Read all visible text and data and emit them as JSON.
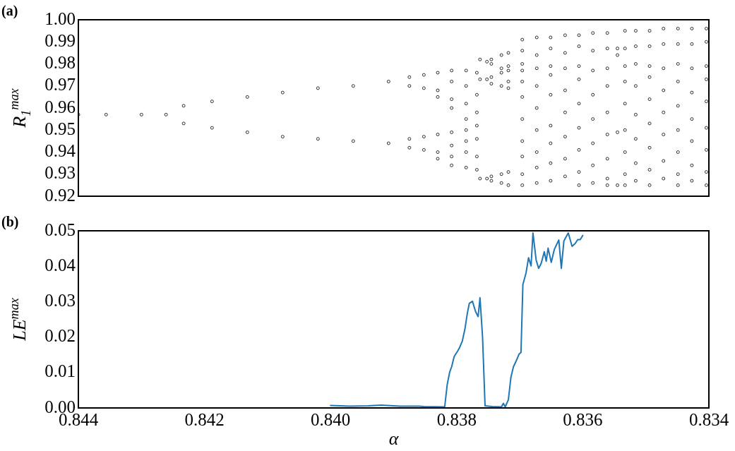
{
  "chart_data": [
    {
      "type": "scatter",
      "ylabel": "R$_{1}$$^{max}$",
      "annotations": [
        "(a)"
      ],
      "color": "#000000",
      "marker": "circle",
      "tick_labels": "y",
      "xlim": [
        0.844,
        0.834
      ],
      "ylim": [
        0.92,
        1.0
      ],
      "yticks": [
        {
          "value": 0.92,
          "label": "0.92"
        },
        {
          "value": 0.93,
          "label": "0.93"
        },
        {
          "value": 0.94,
          "label": "0.94"
        },
        {
          "value": 0.95,
          "label": "0.95"
        },
        {
          "value": 0.96,
          "label": "0.96"
        },
        {
          "value": 0.97,
          "label": "0.97"
        },
        {
          "value": 0.98,
          "label": "0.98"
        },
        {
          "value": 0.99,
          "label": "0.99"
        },
        {
          "value": 1.0,
          "label": "1.00"
        }
      ],
      "x": [
        0.844,
        0.84356,
        0.843,
        0.84261,
        0.84233,
        0.84233,
        0.84188,
        0.84188,
        0.84132,
        0.84132,
        0.84076,
        0.84076,
        0.8402,
        0.8402,
        0.83964,
        0.83964,
        0.83908,
        0.83908,
        0.83875,
        0.83875,
        0.83875,
        0.83875,
        0.83852,
        0.83852,
        0.83852,
        0.83852,
        0.8383,
        0.8383,
        0.8383,
        0.8383,
        0.8383,
        0.8383,
        0.83808,
        0.83808,
        0.83808,
        0.83808,
        0.83808,
        0.83808,
        0.83808,
        0.83808,
        0.83785,
        0.83785,
        0.83785,
        0.83785,
        0.83785,
        0.83785,
        0.83785,
        0.83785,
        0.83768,
        0.83768,
        0.83768,
        0.83768,
        0.83768,
        0.83768,
        0.83768,
        0.83763,
        0.83763,
        0.83763,
        0.83752,
        0.83752,
        0.83752,
        0.83745,
        0.83745,
        0.83745,
        0.83745,
        0.83745,
        0.83745,
        0.83729,
        0.83729,
        0.83729,
        0.83729,
        0.83729,
        0.83729,
        0.83718,
        0.83718,
        0.83718,
        0.83718,
        0.83718,
        0.83718,
        0.83718,
        0.83696,
        0.83696,
        0.83696,
        0.83696,
        0.83696,
        0.83696,
        0.83696,
        0.83696,
        0.83696,
        0.83696,
        0.83696,
        0.83673,
        0.83673,
        0.83673,
        0.83673,
        0.83673,
        0.83673,
        0.83673,
        0.83673,
        0.83673,
        0.83651,
        0.83651,
        0.83651,
        0.83651,
        0.83651,
        0.83651,
        0.83651,
        0.83651,
        0.83651,
        0.83628,
        0.83628,
        0.83628,
        0.83628,
        0.83628,
        0.83628,
        0.83628,
        0.83628,
        0.83606,
        0.83606,
        0.83606,
        0.83606,
        0.83606,
        0.83606,
        0.83606,
        0.83606,
        0.83606,
        0.83584,
        0.83584,
        0.83584,
        0.83584,
        0.83584,
        0.83584,
        0.83584,
        0.83584,
        0.83561,
        0.83561,
        0.83561,
        0.83561,
        0.83561,
        0.83561,
        0.83561,
        0.83561,
        0.83561,
        0.83545,
        0.83545,
        0.83545,
        0.83545,
        0.83533,
        0.83533,
        0.83533,
        0.83533,
        0.83533,
        0.83533,
        0.83533,
        0.83533,
        0.83533,
        0.83516,
        0.83516,
        0.83516,
        0.83516,
        0.83516,
        0.83516,
        0.83516,
        0.83516,
        0.83494,
        0.83494,
        0.83494,
        0.83494,
        0.83494,
        0.83494,
        0.83494,
        0.83494,
        0.83494,
        0.83472,
        0.83472,
        0.83472,
        0.83472,
        0.83472,
        0.83472,
        0.83472,
        0.83472,
        0.83449,
        0.83449,
        0.83449,
        0.83449,
        0.83449,
        0.83449,
        0.83449,
        0.83449,
        0.83449,
        0.83427,
        0.83427,
        0.83427,
        0.83427,
        0.83427,
        0.83427,
        0.83427,
        0.83427,
        0.83404,
        0.83404,
        0.83404,
        0.83404,
        0.83404,
        0.83404,
        0.83404,
        0.83404,
        0.83404
      ],
      "values": [
        0.957,
        0.957,
        0.957,
        0.957,
        0.961,
        0.953,
        0.963,
        0.951,
        0.965,
        0.949,
        0.967,
        0.947,
        0.969,
        0.946,
        0.97,
        0.945,
        0.972,
        0.944,
        0.974,
        0.97,
        0.946,
        0.942,
        0.975,
        0.969,
        0.947,
        0.941,
        0.976,
        0.968,
        0.965,
        0.948,
        0.94,
        0.937,
        0.977,
        0.972,
        0.964,
        0.96,
        0.949,
        0.943,
        0.938,
        0.934,
        0.977,
        0.97,
        0.962,
        0.955,
        0.95,
        0.945,
        0.94,
        0.933,
        0.976,
        0.966,
        0.958,
        0.952,
        0.946,
        0.938,
        0.932,
        0.982,
        0.973,
        0.928,
        0.981,
        0.973,
        0.928,
        0.982,
        0.98,
        0.974,
        0.971,
        0.929,
        0.927,
        0.984,
        0.978,
        0.976,
        0.97,
        0.93,
        0.926,
        0.985,
        0.979,
        0.977,
        0.972,
        0.969,
        0.931,
        0.925,
        0.991,
        0.986,
        0.98,
        0.977,
        0.972,
        0.965,
        0.955,
        0.945,
        0.938,
        0.93,
        0.925,
        0.992,
        0.984,
        0.978,
        0.97,
        0.96,
        0.95,
        0.94,
        0.933,
        0.926,
        0.992,
        0.987,
        0.979,
        0.975,
        0.966,
        0.952,
        0.944,
        0.935,
        0.927,
        0.993,
        0.985,
        0.978,
        0.968,
        0.958,
        0.947,
        0.937,
        0.929,
        0.993,
        0.988,
        0.979,
        0.973,
        0.962,
        0.951,
        0.941,
        0.931,
        0.925,
        0.994,
        0.986,
        0.977,
        0.966,
        0.955,
        0.944,
        0.934,
        0.926,
        0.994,
        0.987,
        0.978,
        0.97,
        0.958,
        0.948,
        0.937,
        0.928,
        0.925,
        0.987,
        0.984,
        0.949,
        0.925,
        0.995,
        0.987,
        0.979,
        0.972,
        0.962,
        0.95,
        0.94,
        0.93,
        0.925,
        0.995,
        0.988,
        0.98,
        0.97,
        0.957,
        0.946,
        0.935,
        0.927,
        0.995,
        0.988,
        0.979,
        0.974,
        0.964,
        0.953,
        0.942,
        0.932,
        0.925,
        0.996,
        0.989,
        0.978,
        0.968,
        0.958,
        0.948,
        0.936,
        0.928,
        0.996,
        0.989,
        0.98,
        0.972,
        0.961,
        0.95,
        0.94,
        0.93,
        0.925,
        0.996,
        0.989,
        0.978,
        0.967,
        0.955,
        0.945,
        0.934,
        0.927,
        0.996,
        0.99,
        0.979,
        0.973,
        0.963,
        0.951,
        0.941,
        0.931,
        0.925
      ]
    },
    {
      "type": "line",
      "xlabel": "α",
      "ylabel": "LE$^{max}$",
      "annotations": [
        "(b)"
      ],
      "color": "#1f77b4",
      "marker": "none",
      "xlim": [
        0.844,
        0.834
      ],
      "xticks": [
        {
          "value": 0.844,
          "label": "0.844"
        },
        {
          "value": 0.842,
          "label": "0.842"
        },
        {
          "value": 0.84,
          "label": "0.840"
        },
        {
          "value": 0.838,
          "label": "0.838"
        },
        {
          "value": 0.836,
          "label": "0.836"
        },
        {
          "value": 0.834,
          "label": "0.834"
        }
      ],
      "ylim": [
        0,
        0.05
      ],
      "yticks": [
        {
          "value": 0,
          "label": "0.00"
        },
        {
          "value": 0.01,
          "label": "0.01"
        },
        {
          "value": 0.02,
          "label": "0.02"
        },
        {
          "value": 0.03,
          "label": "0.03"
        },
        {
          "value": 0.04,
          "label": "0.04"
        },
        {
          "value": 0.05,
          "label": "0.05"
        }
      ],
      "x": [
        0.84,
        0.8397,
        0.8394,
        0.8392,
        0.8389,
        0.8386,
        0.83852,
        0.83819,
        0.83815,
        0.83811,
        0.83808,
        0.83804,
        0.83798,
        0.83795,
        0.83791,
        0.83787,
        0.83783,
        0.8378,
        0.83775,
        0.8377,
        0.83766,
        0.83763,
        0.83759,
        0.83755,
        0.83744,
        0.83729,
        0.83726,
        0.83723,
        0.83718,
        0.83714,
        0.8371,
        0.83705,
        0.83701,
        0.83698,
        0.83695,
        0.8369,
        0.83686,
        0.83682,
        0.83679,
        0.83674,
        0.8367,
        0.83666,
        0.83661,
        0.83658,
        0.83655,
        0.8365,
        0.83645,
        0.83638,
        0.83634,
        0.8363,
        0.83623,
        0.83617,
        0.83612,
        0.83608,
        0.83604,
        0.836
      ],
      "values": [
        0.0007,
        0.0005,
        0.0006,
        0.0008,
        0.0005,
        0.0005,
        0.0004,
        0.0003,
        0.0066,
        0.0102,
        0.0116,
        0.0145,
        0.0162,
        0.0172,
        0.0189,
        0.0222,
        0.0268,
        0.0295,
        0.0301,
        0.0272,
        0.0258,
        0.0311,
        0.0202,
        0.0006,
        0.0004,
        0.0003,
        0.0013,
        0.0003,
        0.0023,
        0.0086,
        0.0116,
        0.0135,
        0.0152,
        0.0157,
        0.0348,
        0.0381,
        0.0424,
        0.0401,
        0.0494,
        0.0418,
        0.0394,
        0.0408,
        0.0441,
        0.0414,
        0.0451,
        0.0411,
        0.0448,
        0.0474,
        0.0394,
        0.0471,
        0.0494,
        0.0456,
        0.0464,
        0.0475,
        0.0475,
        0.0487
      ]
    }
  ]
}
